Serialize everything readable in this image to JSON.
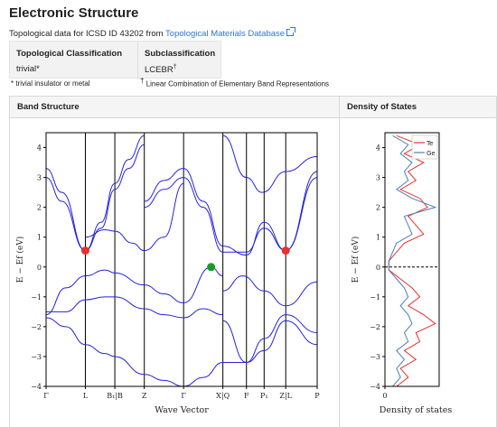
{
  "page": {
    "title": "Electronic Structure",
    "subtitle_text": "Topological data for ICSD ID 43202 from",
    "subtitle_link": "Topological Materials Database",
    "classification": {
      "head1": "Topological Classification",
      "value1": "trivial*",
      "head2": "Subclassification",
      "value2": "LCEBR",
      "value2_mark": "†"
    },
    "note_trivial": "* trivial insulator or metal",
    "note_lcebr_mark": "†",
    "note_lcebr": "Linear Combination of Elementary Band Representations",
    "panel_band": "Band Structure",
    "panel_dos": "Density of States"
  },
  "colors": {
    "band": "#2323e0",
    "red": "#e8302c",
    "green": "#1a9a26",
    "link": "#3273dc",
    "dos_total": "#e8302c",
    "dos_other": "#4a7fc0"
  },
  "chart_data": [
    {
      "type": "line",
      "xlabel": "Wave Vector",
      "ylabel": "E − E_f (eV)",
      "ylim": [
        -4,
        4.5
      ],
      "yticks": [
        -4,
        -3,
        -2,
        -1,
        0,
        1,
        2,
        3,
        4
      ],
      "kpoints": [
        "Γ",
        "L",
        "B₁|B",
        "Z",
        "Γ",
        "X|Q",
        "F",
        "P₁",
        "Z|L",
        "P"
      ],
      "kpoint_x": [
        0,
        1,
        1.75,
        2.5,
        3.5,
        4.5,
        5.1,
        5.55,
        6.1,
        6.9
      ],
      "markers": [
        {
          "x": 1.0,
          "y": 0.55,
          "color": "red"
        },
        {
          "x": 4.2,
          "y": 0.0,
          "color": "green"
        },
        {
          "x": 6.1,
          "y": 0.55,
          "color": "red"
        }
      ],
      "bands": [
        {
          "x": [
            0,
            0.4,
            1.0,
            1.4,
            1.75,
            2.1,
            2.5
          ],
          "y": [
            3.3,
            2.5,
            0.55,
            1.5,
            2.8,
            3.6,
            4.4
          ]
        },
        {
          "x": [
            0,
            0.4,
            1.0,
            1.4,
            1.75,
            2.1,
            2.5
          ],
          "y": [
            3.0,
            2.2,
            0.55,
            1.3,
            2.6,
            3.3,
            4.1
          ]
        },
        {
          "x": [
            1.0,
            1.5,
            1.75,
            2.2,
            2.5,
            3.0,
            3.5
          ],
          "y": [
            1.0,
            1.25,
            1.2,
            0.8,
            0.55,
            1.0,
            2.8
          ]
        },
        {
          "x": [
            2.5,
            3.0,
            3.5,
            4.0,
            4.5,
            5.1,
            5.55,
            6.1,
            6.9
          ],
          "y": [
            2.2,
            2.9,
            3.3,
            2.2,
            0.7,
            0.4,
            1.5,
            0.55,
            3.2
          ]
        },
        {
          "x": [
            2.5,
            3.0,
            3.5,
            4.0,
            4.5,
            5.1,
            5.55,
            6.1,
            6.9
          ],
          "y": [
            2.0,
            2.6,
            3.0,
            2.0,
            0.5,
            0.5,
            1.3,
            0.55,
            3.0
          ]
        },
        {
          "x": [
            0,
            0.5,
            1.0,
            1.5,
            1.75,
            2.5,
            3.0,
            3.5,
            4.2,
            4.5
          ],
          "y": [
            -1.6,
            -0.7,
            -0.3,
            -0.1,
            -0.2,
            -0.6,
            -0.9,
            -1.2,
            0.0,
            -0.3
          ]
        },
        {
          "x": [
            0,
            0.5,
            1.0,
            1.5,
            1.75,
            2.5,
            3.0,
            3.5,
            4.0,
            4.5
          ],
          "y": [
            -1.5,
            -1.5,
            -1.1,
            -1.0,
            -1.0,
            -1.4,
            -1.6,
            -1.7,
            -1.4,
            -1.6
          ]
        },
        {
          "x": [
            0,
            0.5,
            1.0,
            1.5,
            1.75,
            2.5,
            3.0,
            3.5,
            4.0,
            4.5,
            5.1,
            5.55,
            6.1,
            6.9
          ],
          "y": [
            -1.7,
            -2.0,
            -2.6,
            -2.9,
            -3.0,
            -3.6,
            -3.8,
            -4.0,
            -3.7,
            -3.2,
            -3.2,
            -2.4,
            -1.6,
            -2.2
          ]
        },
        {
          "x": [
            4.5,
            5.1,
            5.55,
            6.1,
            6.9
          ],
          "y": [
            -1.8,
            -3.2,
            -2.8,
            -1.8,
            -2.6
          ]
        },
        {
          "x": [
            4.5,
            5.0,
            5.55,
            6.1,
            6.9
          ],
          "y": [
            -0.8,
            -0.3,
            -0.8,
            -1.3,
            -0.5
          ]
        },
        {
          "x": [
            4.5,
            5.1,
            5.5,
            6.1,
            6.9
          ],
          "y": [
            4.4,
            3.0,
            2.5,
            3.2,
            3.7
          ]
        }
      ]
    },
    {
      "type": "line",
      "xlabel": "Density of states",
      "ylabel": "E − E_f (eV)",
      "ylim": [
        -4,
        4.5
      ],
      "yticks": [
        -4,
        -3,
        -2,
        -1,
        0,
        1,
        2,
        3,
        4
      ],
      "xtick": "0",
      "legend": [
        "Te",
        "Ge"
      ],
      "legend_position": "top-right",
      "fermi_line": 0,
      "series": [
        {
          "name": "Te",
          "energy": [
            4.4,
            4.1,
            3.8,
            3.5,
            3.2,
            2.9,
            2.6,
            2.3,
            2.0,
            1.7,
            1.4,
            1.1,
            0.8,
            0.5,
            0.2,
            -0.1,
            -0.4,
            -0.7,
            -1.0,
            -1.3,
            -1.6,
            -1.9,
            -2.2,
            -2.5,
            -2.8,
            -3.1,
            -3.4,
            -3.7,
            -4.0
          ],
          "dos": [
            0.3,
            0.9,
            0.5,
            1.0,
            0.6,
            0.8,
            0.4,
            0.9,
            1.1,
            0.6,
            0.8,
            1.0,
            0.5,
            0.3,
            0.1,
            0.1,
            0.4,
            0.7,
            0.9,
            0.6,
            1.0,
            1.3,
            0.8,
            0.9,
            0.5,
            0.8,
            0.4,
            0.6,
            0.3
          ]
        },
        {
          "name": "Ge",
          "energy": [
            4.4,
            4.1,
            3.8,
            3.5,
            3.2,
            2.9,
            2.6,
            2.3,
            2.0,
            1.7,
            1.4,
            1.1,
            0.8,
            0.5,
            0.2,
            -0.1,
            -0.4,
            -0.7,
            -1.0,
            -1.3,
            -1.6,
            -1.9,
            -2.2,
            -2.5,
            -2.8,
            -3.1,
            -3.4,
            -3.7,
            -4.0
          ],
          "dos": [
            0.2,
            0.6,
            0.4,
            0.7,
            0.5,
            0.6,
            0.3,
            0.7,
            1.3,
            0.5,
            0.6,
            0.7,
            0.3,
            0.2,
            0.1,
            0.1,
            0.3,
            0.5,
            0.6,
            0.4,
            0.6,
            0.7,
            0.5,
            0.6,
            0.3,
            0.5,
            0.3,
            0.4,
            0.2
          ]
        }
      ]
    }
  ]
}
